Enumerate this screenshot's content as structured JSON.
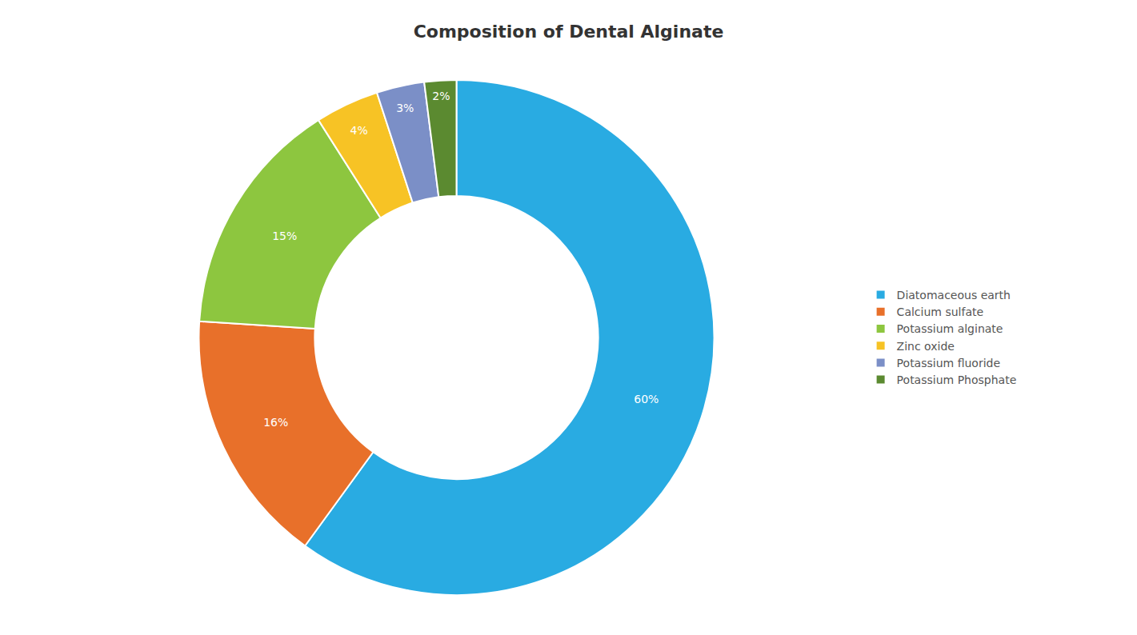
{
  "chart_data": {
    "type": "donut",
    "title": "Composition of Dental Alginate",
    "categories": [
      "Diatomaceous earth",
      "Calcium sulfate",
      "Potassium alginate",
      "Zinc oxide",
      "Potassium fluoride",
      "Potassium Phosphate"
    ],
    "values": [
      60,
      16,
      15,
      4,
      3,
      2
    ],
    "value_labels": [
      "60%",
      "16%",
      "15%",
      "4%",
      "3%",
      "2%"
    ],
    "colors": [
      "#29ABE2",
      "#E8702A",
      "#8DC63F",
      "#F7C325",
      "#7B8FC7",
      "#5B8A30"
    ],
    "data_labels": true,
    "legend": "right"
  }
}
